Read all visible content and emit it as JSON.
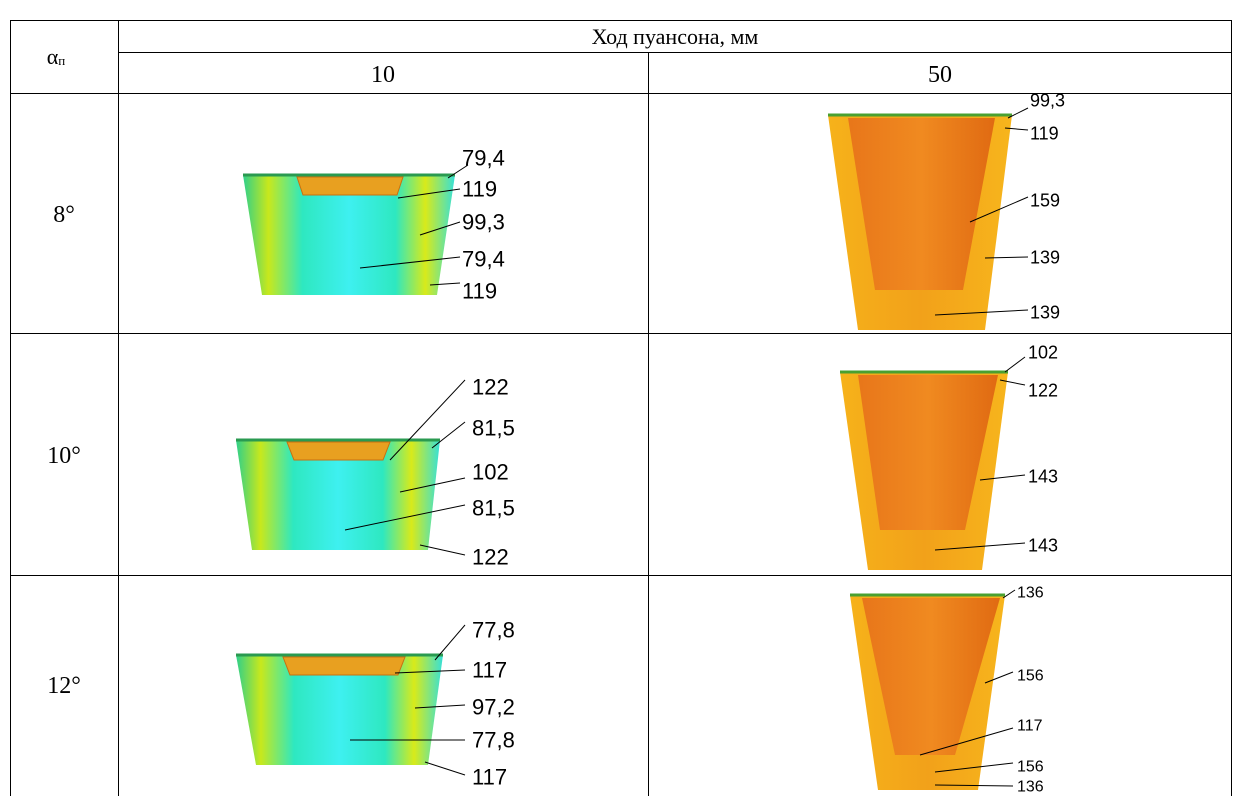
{
  "header": {
    "corner_symbol": "α",
    "corner_subscript": "п",
    "group": "Ход пуансона, мм",
    "columns": [
      "10",
      "50"
    ]
  },
  "rows": [
    {
      "angle": "8°",
      "cells": [
        {
          "labels": [
            "79,4",
            "119",
            "99,3",
            "79,4",
            "119"
          ]
        },
        {
          "labels": [
            "99,3",
            "119",
            "159",
            "139",
            "139"
          ]
        }
      ]
    },
    {
      "angle": "10°",
      "cells": [
        {
          "labels": [
            "122",
            "81,5",
            "102",
            "81,5",
            "122"
          ]
        },
        {
          "labels": [
            "102",
            "122",
            "143",
            "143"
          ]
        }
      ]
    },
    {
      "angle": "12°",
      "cells": [
        {
          "labels": [
            "77,8",
            "117",
            "97,2",
            "77,8",
            "117"
          ]
        },
        {
          "labels": [
            "136",
            "156",
            "117",
            "156",
            "136"
          ]
        }
      ]
    }
  ]
}
